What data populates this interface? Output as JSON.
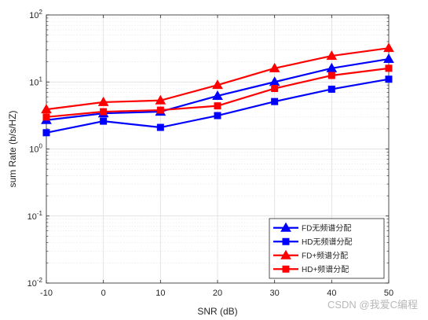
{
  "chart_data": {
    "type": "line",
    "title": "",
    "xlabel": "SNR (dB)",
    "ylabel": "sum Rate (b/s/HZ)",
    "x": [
      -10,
      0,
      10,
      20,
      30,
      40,
      50
    ],
    "xlim": [
      -10,
      50
    ],
    "xticks": [
      -10,
      0,
      10,
      20,
      30,
      40,
      50
    ],
    "ylim": [
      0.01,
      100
    ],
    "yscale": "log",
    "yticks": [
      {
        "value": 0.01,
        "mantissa": "10",
        "exp": "-2"
      },
      {
        "value": 0.1,
        "mantissa": "10",
        "exp": "-1"
      },
      {
        "value": 1,
        "mantissa": "10",
        "exp": "0"
      },
      {
        "value": 10,
        "mantissa": "10",
        "exp": "1"
      },
      {
        "value": 100,
        "mantissa": "10",
        "exp": "2"
      }
    ],
    "grid": true,
    "legend_position": "bottom-right",
    "series": [
      {
        "name": "FD无频谱分配",
        "color": "#0000ff",
        "marker": "triangle",
        "values": [
          2.7,
          3.4,
          3.6,
          6.2,
          10,
          16,
          22
        ]
      },
      {
        "name": "HD无频谱分配",
        "color": "#0000ff",
        "marker": "square",
        "values": [
          1.75,
          2.6,
          2.1,
          3.15,
          5.1,
          7.8,
          11
        ]
      },
      {
        "name": "FD+频谱分配",
        "color": "#ff0000",
        "marker": "triangle",
        "values": [
          3.9,
          5.0,
          5.3,
          9.0,
          16,
          24.5,
          32
        ]
      },
      {
        "name": "HD+频谱分配",
        "color": "#ff0000",
        "marker": "square",
        "values": [
          3.0,
          3.6,
          3.8,
          4.4,
          8.0,
          12.5,
          16
        ]
      }
    ]
  },
  "watermark": "CSDN @我爱C编程"
}
